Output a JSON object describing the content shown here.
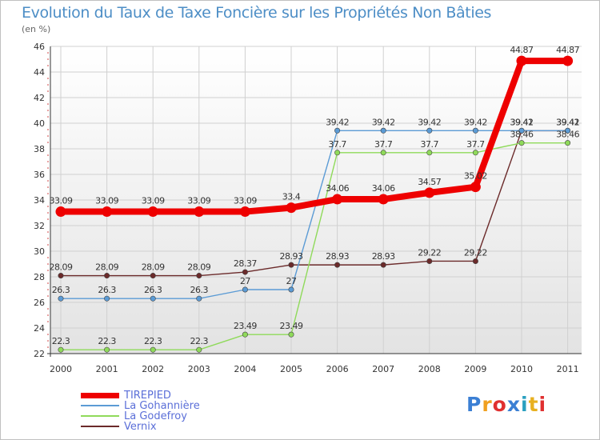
{
  "chart_data": {
    "type": "line",
    "title": "Evolution du Taux de Taxe Foncière sur les Propriétés Non Bâties",
    "ylabel": "(en %)",
    "xlabel": "",
    "ylim": [
      22,
      46
    ],
    "yticks": [
      "22",
      "24",
      "26",
      "28",
      "30",
      "32",
      "34",
      "36",
      "38",
      "40",
      "42",
      "44",
      "46"
    ],
    "categories": [
      "2000",
      "2001",
      "2002",
      "2003",
      "2004",
      "2005",
      "2006",
      "2007",
      "2008",
      "2009",
      "2010",
      "2011"
    ],
    "series": [
      {
        "name": "TIREPIED",
        "color": "#ee0000",
        "values": [
          33.09,
          33.09,
          33.09,
          33.09,
          33.09,
          33.4,
          34.06,
          34.06,
          34.57,
          35.02,
          44.87,
          44.87
        ],
        "labels": [
          "33.09",
          "33.09",
          "33.09",
          "33.09",
          "33.09",
          "33.4",
          "34.06",
          "34.06",
          "34.57",
          "35.02",
          "44.87",
          "44.87"
        ]
      },
      {
        "name": "La Gohannière",
        "color": "#5b9bd5",
        "values": [
          26.3,
          26.3,
          26.3,
          26.3,
          27,
          27,
          39.42,
          39.42,
          39.42,
          39.42,
          39.42,
          39.42
        ],
        "labels": [
          "26.3",
          "26.3",
          "26.3",
          "26.3",
          "27",
          "27",
          "39.42",
          "39.42",
          "39.42",
          "39.42",
          "39.42",
          "39.42"
        ]
      },
      {
        "name": "La Godefroy",
        "color": "#8fda5a",
        "values": [
          22.3,
          22.3,
          22.3,
          22.3,
          23.49,
          23.49,
          37.7,
          37.7,
          37.7,
          37.7,
          38.46,
          38.46
        ],
        "labels": [
          "22.3",
          "22.3",
          "22.3",
          "22.3",
          "23.49",
          "23.49",
          "37.7",
          "37.7",
          "37.7",
          "37.7",
          "38.46",
          "38.46"
        ]
      },
      {
        "name": "Vernix",
        "color": "#6b2a2a",
        "values": [
          28.09,
          28.09,
          28.09,
          28.09,
          28.37,
          28.93,
          28.93,
          28.93,
          29.22,
          29.22,
          39.41,
          39.41
        ],
        "labels": [
          "28.09",
          "28.09",
          "28.09",
          "28.09",
          "28.37",
          "28.93",
          "28.93",
          "28.93",
          "29.22",
          "29.22",
          "39.41",
          "39.41"
        ]
      }
    ],
    "legend_position": "bottom-left"
  },
  "brand": {
    "text": "Proxiti",
    "colors": [
      "#3b7fd4",
      "#f0a020",
      "#e03030",
      "#3b7fd4",
      "#2aa0c0",
      "#e8b020",
      "#e03030"
    ]
  }
}
